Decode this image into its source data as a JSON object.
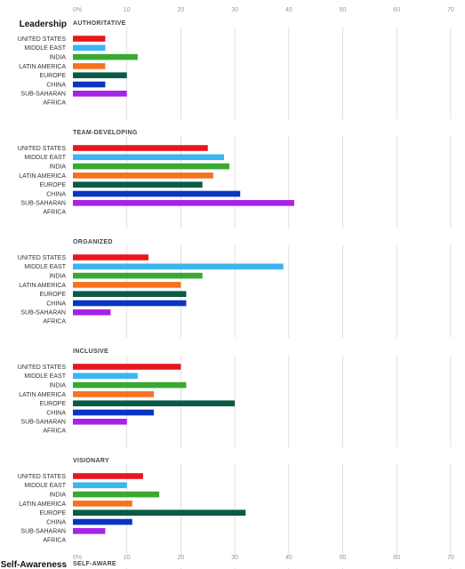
{
  "x_axis": {
    "tick_labels": [
      "0%",
      "10",
      "20",
      "30",
      "40",
      "50",
      "60",
      "70"
    ]
  },
  "sections": [
    {
      "label": "Leadership",
      "first_panel": 0
    },
    {
      "label": "Self-Awareness",
      "first_panel": 5
    }
  ],
  "colors": {
    "United States": "#e8161c",
    "Middle East": "#3ab6f0",
    "India": "#3aa832",
    "Latin America": "#f5721e",
    "Europe": "#0b5a48",
    "China": "#0a35c4",
    "Sub-Saharan Africa": "#a722e8"
  },
  "chart_data": [
    {
      "type": "bar",
      "orientation": "horizontal",
      "title": "AUTHORITATIVE",
      "categories": [
        "UNITED STATES",
        "MIDDLE EAST",
        "INDIA",
        "LATIN AMERICA",
        "EUROPE",
        "CHINA",
        "SUB-SAHARAN AFRICA"
      ],
      "values": [
        6,
        6,
        12,
        6,
        10,
        6,
        10
      ],
      "xlim": [
        0,
        70
      ],
      "grid": true
    },
    {
      "type": "bar",
      "orientation": "horizontal",
      "title": "TEAM-DEVELOPING",
      "categories": [
        "UNITED STATES",
        "MIDDLE EAST",
        "INDIA",
        "LATIN AMERICA",
        "EUROPE",
        "CHINA",
        "SUB-SAHARAN AFRICA"
      ],
      "values": [
        25,
        28,
        29,
        26,
        24,
        31,
        41
      ],
      "xlim": [
        0,
        70
      ],
      "grid": true
    },
    {
      "type": "bar",
      "orientation": "horizontal",
      "title": "ORGANIZED",
      "categories": [
        "UNITED STATES",
        "MIDDLE EAST",
        "INDIA",
        "LATIN AMERICA",
        "EUROPE",
        "CHINA",
        "SUB-SAHARAN AFRICA"
      ],
      "values": [
        14,
        39,
        24,
        20,
        21,
        21,
        7
      ],
      "xlim": [
        0,
        70
      ],
      "grid": true
    },
    {
      "type": "bar",
      "orientation": "horizontal",
      "title": "INCLUSIVE",
      "categories": [
        "UNITED STATES",
        "MIDDLE EAST",
        "INDIA",
        "LATIN AMERICA",
        "EUROPE",
        "CHINA",
        "SUB-SAHARAN AFRICA"
      ],
      "values": [
        20,
        12,
        21,
        15,
        30,
        15,
        10
      ],
      "xlim": [
        0,
        70
      ],
      "grid": true
    },
    {
      "type": "bar",
      "orientation": "horizontal",
      "title": "VISIONARY",
      "categories": [
        "UNITED STATES",
        "MIDDLE EAST",
        "INDIA",
        "LATIN AMERICA",
        "EUROPE",
        "CHINA",
        "SUB-SAHARAN AFRICA"
      ],
      "values": [
        13,
        10,
        16,
        11,
        32,
        11,
        6
      ],
      "xlim": [
        0,
        70
      ],
      "grid": true
    },
    {
      "type": "bar",
      "orientation": "horizontal",
      "title": "SELF-AWARE",
      "categories": [],
      "values": [],
      "xlim": [
        0,
        70
      ],
      "grid": true
    }
  ]
}
